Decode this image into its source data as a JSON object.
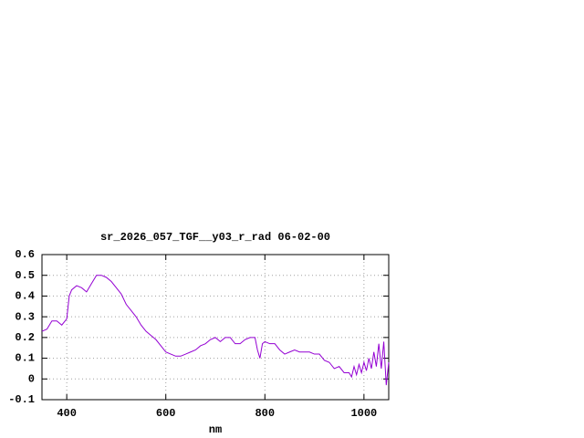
{
  "chart_data": {
    "type": "line",
    "title": "sr_2026_057_TGF__y03_r_rad 06-02-00",
    "x_label": "nm",
    "x": [
      350,
      360,
      370,
      380,
      390,
      400,
      405,
      410,
      420,
      430,
      440,
      450,
      460,
      470,
      480,
      490,
      500,
      510,
      520,
      530,
      540,
      550,
      560,
      570,
      580,
      590,
      600,
      610,
      620,
      630,
      640,
      650,
      660,
      670,
      680,
      690,
      700,
      710,
      720,
      730,
      740,
      750,
      760,
      770,
      780,
      785,
      790,
      795,
      800,
      810,
      820,
      830,
      840,
      850,
      860,
      870,
      880,
      890,
      900,
      910,
      920,
      930,
      940,
      950,
      960,
      970,
      975,
      980,
      985,
      990,
      995,
      1000,
      1005,
      1010,
      1015,
      1020,
      1025,
      1030,
      1035,
      1040,
      1045,
      1050
    ],
    "series": [
      {
        "name": "sr_2026_057_TGF__y03_r_rad",
        "color": "#9400d3",
        "values": [
          0.23,
          0.24,
          0.28,
          0.28,
          0.26,
          0.29,
          0.4,
          0.43,
          0.45,
          0.44,
          0.42,
          0.46,
          0.5,
          0.5,
          0.49,
          0.47,
          0.44,
          0.41,
          0.36,
          0.33,
          0.3,
          0.26,
          0.23,
          0.21,
          0.19,
          0.16,
          0.13,
          0.12,
          0.11,
          0.11,
          0.12,
          0.13,
          0.14,
          0.16,
          0.17,
          0.19,
          0.2,
          0.18,
          0.2,
          0.2,
          0.17,
          0.17,
          0.19,
          0.2,
          0.2,
          0.14,
          0.1,
          0.17,
          0.18,
          0.17,
          0.17,
          0.14,
          0.12,
          0.13,
          0.14,
          0.13,
          0.13,
          0.13,
          0.12,
          0.12,
          0.09,
          0.08,
          0.05,
          0.06,
          0.03,
          0.03,
          0.01,
          0.06,
          0.02,
          0.07,
          0.03,
          0.08,
          0.04,
          0.1,
          0.05,
          0.13,
          0.06,
          0.17,
          0.05,
          0.18,
          -0.03,
          0.08
        ]
      }
    ],
    "xlim": [
      350,
      1050
    ],
    "xticks": [
      400,
      600,
      800,
      1000
    ],
    "ylim": [
      -0.1,
      0.6
    ],
    "yticks": [
      -0.1,
      0,
      0.1,
      0.2,
      0.3,
      0.4,
      0.5,
      0.6
    ],
    "grid": true
  }
}
